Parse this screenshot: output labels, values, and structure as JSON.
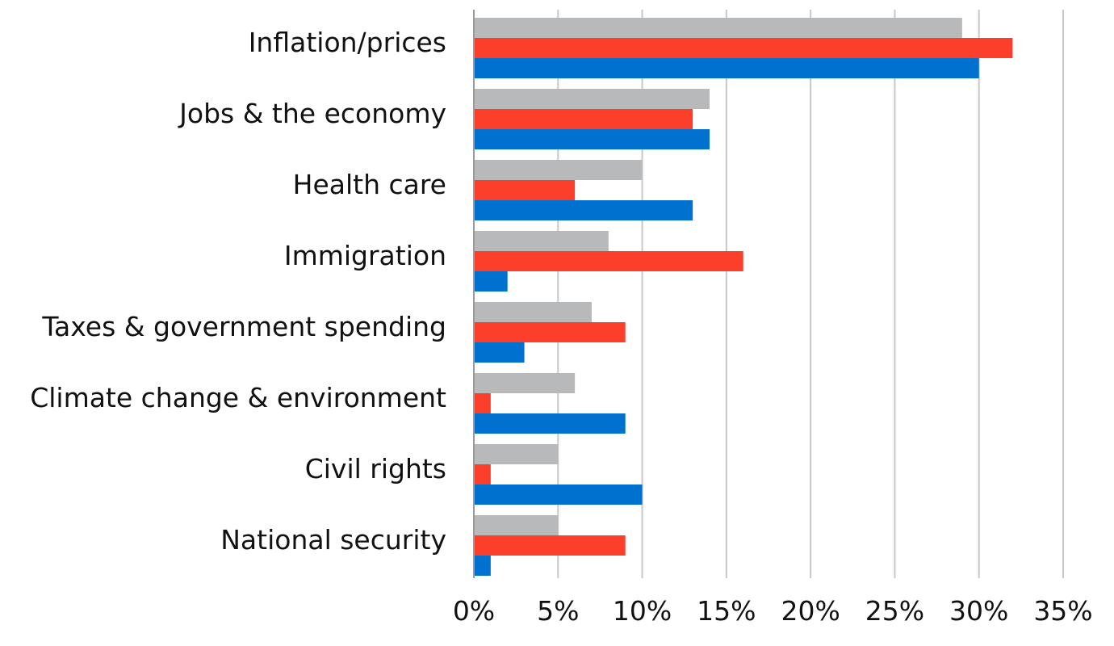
{
  "chart_data": {
    "type": "bar",
    "orientation": "horizontal",
    "categories": [
      "Inflation/prices",
      "Jobs & the economy",
      "Health care",
      "Immigration",
      "Taxes & government spending",
      "Climate change & environment",
      "Civil rights",
      "National security"
    ],
    "series": [
      {
        "color": "#b8b9bb",
        "values": [
          29,
          14,
          10,
          8,
          7,
          6,
          5,
          5
        ]
      },
      {
        "color": "#fc3f2a",
        "values": [
          32,
          13,
          6,
          16,
          9,
          1,
          1,
          9
        ]
      },
      {
        "color": "#0071ce",
        "values": [
          30,
          14,
          13,
          2,
          3,
          9,
          10,
          1
        ]
      }
    ],
    "xlim": [
      0,
      35
    ],
    "xticks": [
      0,
      5,
      10,
      15,
      20,
      25,
      30,
      35
    ],
    "xtick_labels": [
      "0%",
      "5%",
      "10%",
      "15%",
      "20%",
      "25%",
      "30%",
      "35%"
    ],
    "grid": "vertical",
    "legend": "none",
    "title": "",
    "xlabel": "",
    "ylabel": ""
  }
}
